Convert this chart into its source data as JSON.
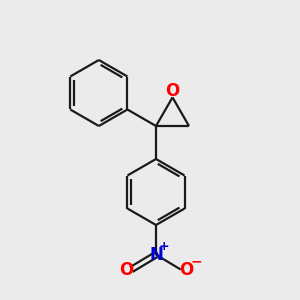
{
  "background_color": "#ebebeb",
  "bond_color": "#1a1a1a",
  "oxygen_color": "#ff0000",
  "nitrogen_color": "#0000cc",
  "nitro_oxygen_color": "#ff0000",
  "line_width": 1.6,
  "dpi": 100,
  "figsize": [
    3.0,
    3.0
  ],
  "xlim": [
    0,
    10
  ],
  "ylim": [
    0,
    10
  ]
}
